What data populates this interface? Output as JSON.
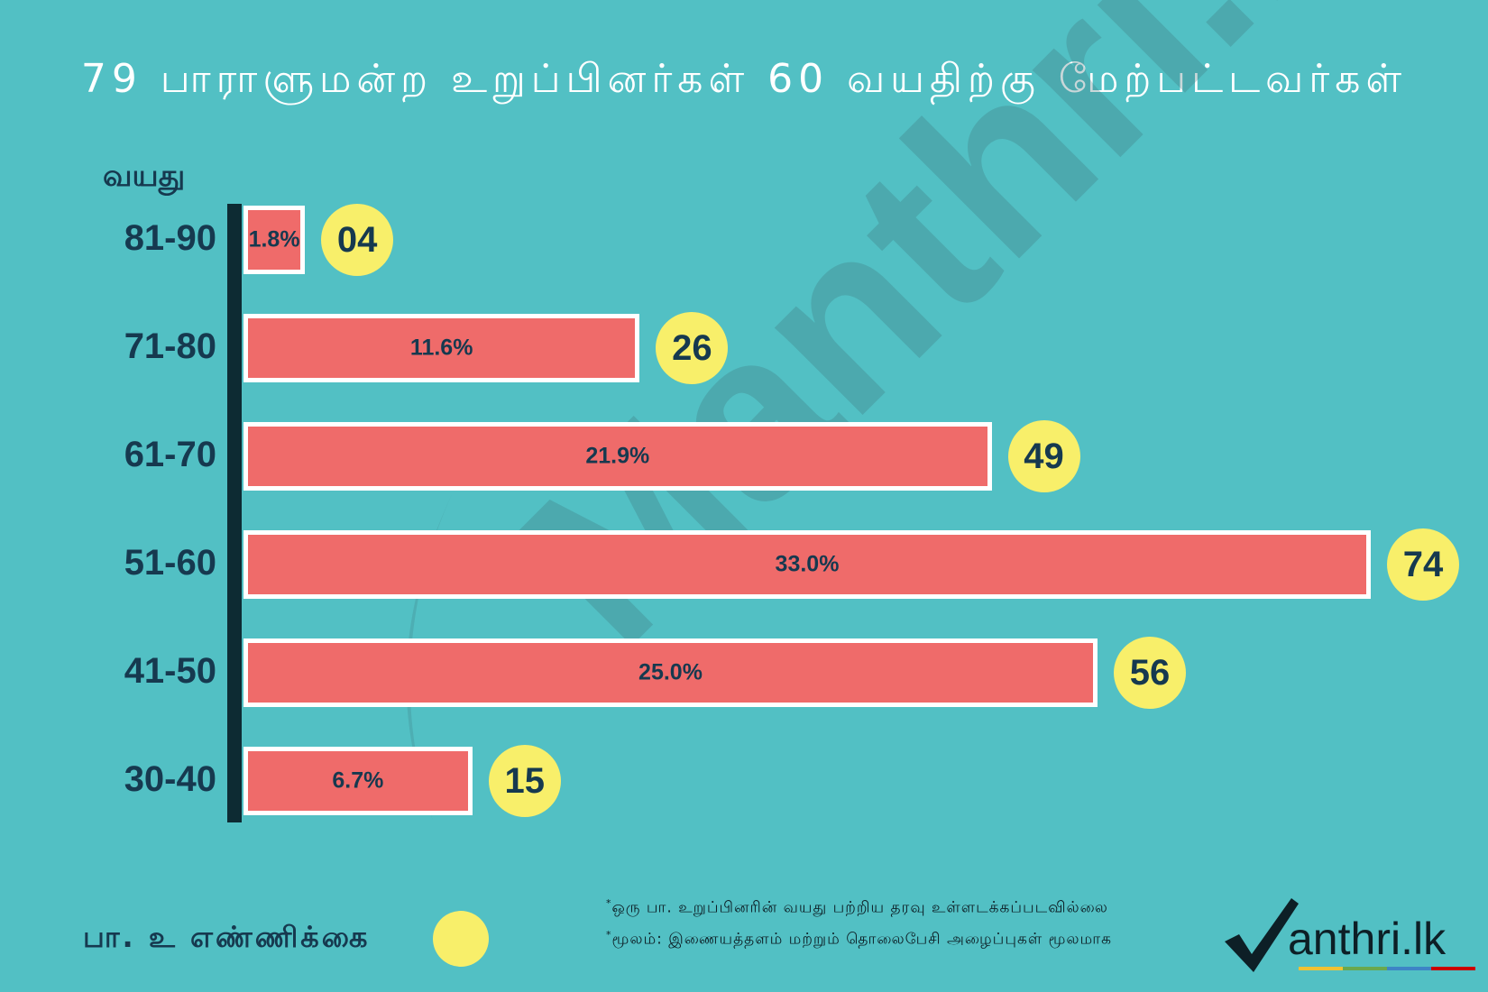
{
  "title": "79 பாராளுமன்ற உறுப்பினர்கள் 60 வயதிற்கு மேற்பட்டவர்கள்",
  "y_axis_label": "வயது",
  "watermark": "Manthri.lk",
  "legend": {
    "label": "பா. உ எண்ணிக்கை",
    "dot_color": "#f8ef6a"
  },
  "notes": [
    "ஒரு பா. உறுப்பினரின் வயது பற்றிய தரவு உள்ளடக்கப்படவில்லை",
    "மூலம்: இணையத்தளம் மற்றும் தொலைபேசி அழைப்புகள் மூலமாக"
  ],
  "logo": {
    "text": "anthri.lk",
    "icon": "checkmark-icon"
  },
  "colors": {
    "background": "#52c0c4",
    "bar": "#ef6b6a",
    "count_badge": "#f8ef6a",
    "text": "#16394f"
  },
  "chart_data": {
    "type": "bar",
    "orientation": "horizontal",
    "title": "79 பாராளுமன்ற உறுப்பினர்கள் 60 வயதிற்கு மேற்பட்டவர்கள்",
    "ylabel": "வயது",
    "categories": [
      "81-90",
      "71-80",
      "61-70",
      "51-60",
      "41-50",
      "30-40"
    ],
    "percent_labels": [
      "1.8%",
      "11.6%",
      "21.9%",
      "33.0%",
      "25.0%",
      "6.7%"
    ],
    "percent_values": [
      1.8,
      11.6,
      21.9,
      33.0,
      25.0,
      6.7
    ],
    "count_labels": [
      "04",
      "26",
      "49",
      "74",
      "56",
      "15"
    ],
    "count_values": [
      4,
      26,
      49,
      74,
      56,
      15
    ],
    "xlim": [
      0,
      33.0
    ],
    "grid": false,
    "legend_position": "bottom-left"
  }
}
